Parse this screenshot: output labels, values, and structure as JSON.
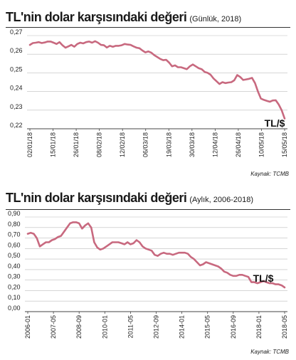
{
  "charts": [
    {
      "title": "TL'nin dolar karşısındaki değeri",
      "subtitle": "(Günlük, 2018)",
      "source": "Kaynak: TCMB",
      "unit_label": "TL/$"
    },
    {
      "title": "TL'nin dolar karşısındaki değeri",
      "subtitle": "(Aylık, 2006-2018)",
      "source": "Kaynak: TCMB",
      "unit_label": "TL/$"
    }
  ],
  "colors": {
    "line": "#c8697f",
    "grid": "#bdbdbd",
    "text": "#1a1a1a"
  },
  "chart_data": [
    {
      "type": "line",
      "title": "TL'nin dolar karşısındaki değeri",
      "subtitle": "(Günlük, 2018)",
      "ylim": [
        0.22,
        0.27
      ],
      "yticks": [
        "0,22",
        "0,23",
        "0,24",
        "0,25",
        "0,26",
        "0,27"
      ],
      "ytick_values": [
        0.22,
        0.23,
        0.24,
        0.25,
        0.26,
        0.27
      ],
      "xticks": [
        "02/01/18",
        "15/01/18",
        "26/01/18",
        "08/02/18",
        "12/02/18",
        "06/03/18",
        "19/03/18",
        "30/03/18",
        "12/04/18",
        "26/04/18",
        "10/05/18",
        "15/05/18"
      ],
      "grid": true,
      "series": [
        {
          "values": [
            0.265,
            0.266,
            0.2662,
            0.2665,
            0.266,
            0.2663,
            0.2668,
            0.2668,
            0.2662,
            0.2655,
            0.2665,
            0.2648,
            0.2635,
            0.2642,
            0.265,
            0.264,
            0.2655,
            0.2662,
            0.2658,
            0.2665,
            0.2668,
            0.2662,
            0.267,
            0.2662,
            0.265,
            0.2648,
            0.2636,
            0.2645,
            0.264,
            0.2645,
            0.2645,
            0.2648,
            0.2655,
            0.2652,
            0.265,
            0.2642,
            0.2635,
            0.2632,
            0.262,
            0.261,
            0.2615,
            0.2608,
            0.2595,
            0.2585,
            0.2575,
            0.2568,
            0.257,
            0.2555,
            0.2535,
            0.254,
            0.253,
            0.253,
            0.2525,
            0.252,
            0.2535,
            0.2545,
            0.2535,
            0.2525,
            0.252,
            0.2505,
            0.25,
            0.249,
            0.247,
            0.2455,
            0.244,
            0.245,
            0.2445,
            0.2448,
            0.245,
            0.246,
            0.2488,
            0.2478,
            0.2462,
            0.2465,
            0.2468,
            0.2473,
            0.2445,
            0.24,
            0.2362,
            0.2355,
            0.235,
            0.2345,
            0.2352,
            0.2353,
            0.233,
            0.23,
            0.2255
          ]
        }
      ]
    },
    {
      "type": "line",
      "title": "TL'nin dolar karşısındaki değeri",
      "subtitle": "(Aylık, 2006-2018)",
      "ylim": [
        0.0,
        0.9
      ],
      "yticks": [
        "0,00",
        "0,10",
        "0,20",
        "0,30",
        "0,40",
        "0,50",
        "0,60",
        "0,70",
        "0,80",
        "0,90"
      ],
      "ytick_values": [
        0.0,
        0.1,
        0.2,
        0.3,
        0.4,
        0.5,
        0.6,
        0.7,
        0.8,
        0.9
      ],
      "xticks": [
        "2006-01",
        "2007-05",
        "2008-09",
        "2010-01",
        "2011-05",
        "2012-09",
        "2014-01",
        "2015-05",
        "2016-09",
        "2018-01",
        "2018-05"
      ],
      "grid": true,
      "series": [
        {
          "values": [
            0.74,
            0.75,
            0.74,
            0.7,
            0.62,
            0.64,
            0.66,
            0.66,
            0.68,
            0.69,
            0.71,
            0.72,
            0.76,
            0.8,
            0.84,
            0.85,
            0.85,
            0.84,
            0.79,
            0.82,
            0.84,
            0.8,
            0.66,
            0.61,
            0.59,
            0.6,
            0.62,
            0.64,
            0.66,
            0.66,
            0.66,
            0.65,
            0.64,
            0.66,
            0.64,
            0.65,
            0.68,
            0.66,
            0.62,
            0.6,
            0.59,
            0.58,
            0.54,
            0.53,
            0.55,
            0.56,
            0.55,
            0.55,
            0.54,
            0.55,
            0.56,
            0.56,
            0.56,
            0.55,
            0.52,
            0.5,
            0.47,
            0.44,
            0.45,
            0.47,
            0.46,
            0.45,
            0.44,
            0.43,
            0.41,
            0.38,
            0.37,
            0.35,
            0.34,
            0.34,
            0.35,
            0.35,
            0.34,
            0.33,
            0.28,
            0.28,
            0.27,
            0.28,
            0.29,
            0.28,
            0.27,
            0.27,
            0.26,
            0.26,
            0.25,
            0.23
          ]
        }
      ]
    }
  ]
}
